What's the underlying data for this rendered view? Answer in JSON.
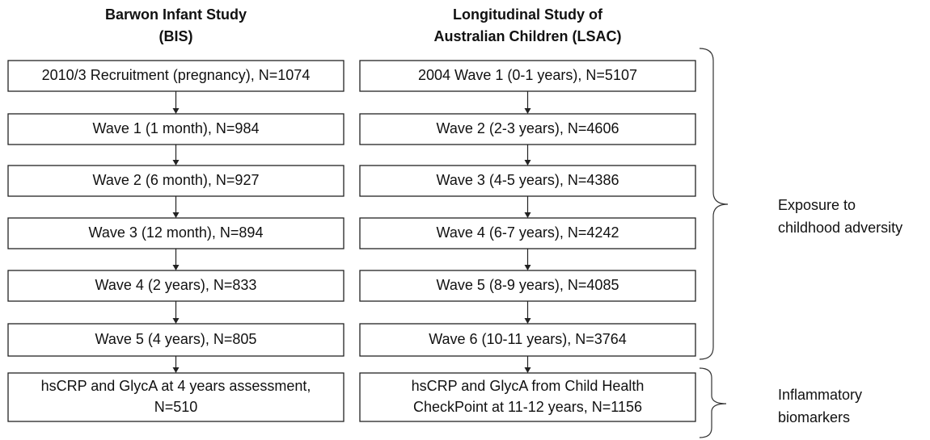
{
  "columns": [
    {
      "title": [
        "Barwon Infant Study",
        "(BIS)"
      ],
      "boxes": [
        [
          "2010/3 Recruitment (pregnancy), N=1074"
        ],
        [
          "Wave 1 (1 month), N=984"
        ],
        [
          "Wave 2 (6 month), N=927"
        ],
        [
          "Wave 3 (12 month), N=894"
        ],
        [
          "Wave 4 (2 years), N=833"
        ],
        [
          "Wave 5 (4 years), N=805"
        ],
        [
          "hsCRP and GlycA at 4 years assessment,",
          "N=510"
        ]
      ]
    },
    {
      "title": [
        "Longitudinal Study of",
        "Australian Children (LSAC)"
      ],
      "boxes": [
        [
          "2004 Wave 1 (0-1 years), N=5107"
        ],
        [
          "Wave 2 (2-3 years), N=4606"
        ],
        [
          "Wave 3 (4-5 years), N=4386"
        ],
        [
          "Wave 4 (6-7 years), N=4242"
        ],
        [
          "Wave 5 (8-9 years), N=4085"
        ],
        [
          "Wave 6 (10-11 years), N=3764"
        ],
        [
          "hsCRP and GlycA from Child Health",
          "CheckPoint at 11-12 years, N=1156"
        ]
      ]
    }
  ],
  "annotations": [
    {
      "label": [
        "Exposure to",
        "childhood adversity"
      ]
    },
    {
      "label": [
        "Inflammatory",
        "biomarkers"
      ]
    }
  ]
}
